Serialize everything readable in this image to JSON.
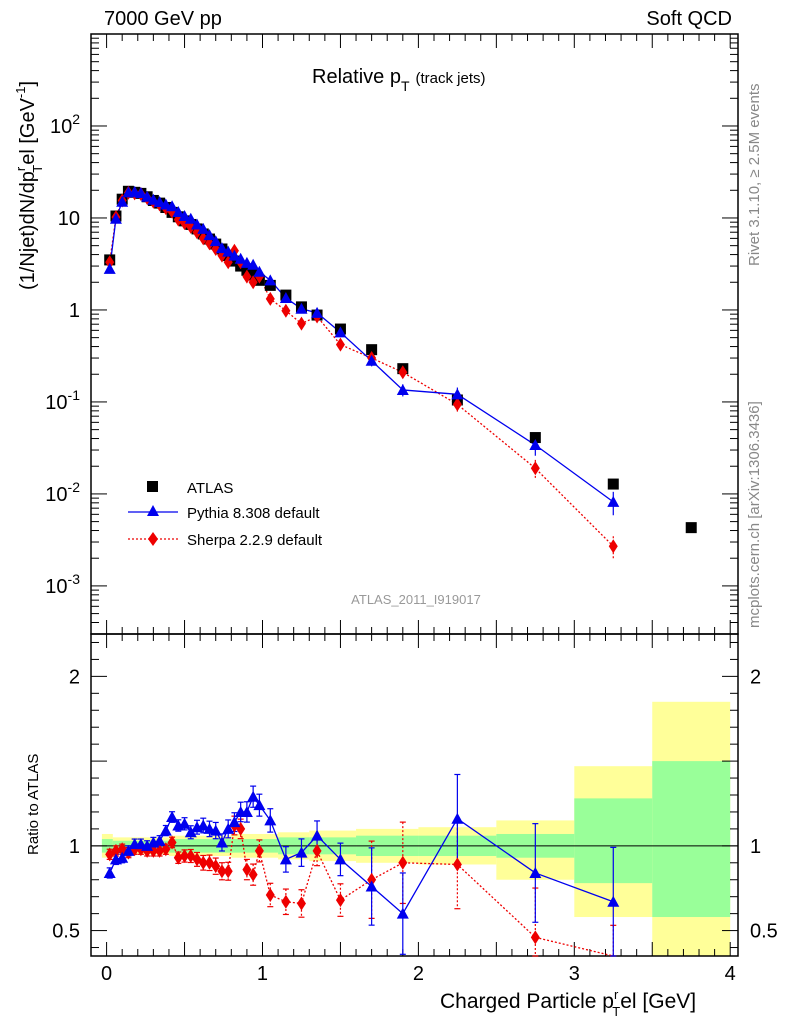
{
  "header": {
    "left": "7000 GeV pp",
    "right": "Soft QCD"
  },
  "side": {
    "rivet": "Rivet 3.1.10, ≥ 2.5M events",
    "mcplots": "mcplots.cern.ch [arXiv:1306.3436]"
  },
  "chart_data": {
    "type": "scatter",
    "title_main": "Relative p",
    "title_sub": "T",
    "title_note": "(track jets)",
    "watermark": "ATLAS_2011_I919017",
    "ylabel_main": {
      "pre": "(1/Njet)dN/dp",
      "r": "r",
      "T": "T",
      "mid": "el [GeV",
      "exp": "-1",
      "post": "]"
    },
    "ylabel_ratio": "Ratio to ATLAS",
    "xlabel": {
      "pre": "Charged Particle p",
      "r": "r",
      "T": "T",
      "post": "el [GeV]"
    },
    "xlim": [
      -0.1,
      4.05
    ],
    "main_ylim": [
      0.0003,
      1000
    ],
    "ratio_ylim": [
      0.35,
      2.25
    ],
    "main_yscale": "log",
    "main_yticks": [
      {
        "v": 0.001,
        "b": "10",
        "e": "-3"
      },
      {
        "v": 0.01,
        "b": "10",
        "e": "-2"
      },
      {
        "v": 0.1,
        "b": "10",
        "e": "-1"
      },
      {
        "v": 1,
        "b": "1",
        "e": ""
      },
      {
        "v": 10,
        "b": "10",
        "e": ""
      },
      {
        "v": 100,
        "b": "10",
        "e": "2"
      }
    ],
    "ratio_yticks": [
      {
        "v": 0.5,
        "label": "0.5"
      },
      {
        "v": 1,
        "label": "1"
      },
      {
        "v": 2,
        "label": "2"
      }
    ],
    "xticks": [
      {
        "v": 0,
        "label": "0"
      },
      {
        "v": 1,
        "label": "1"
      },
      {
        "v": 2,
        "label": "2"
      },
      {
        "v": 3,
        "label": "3"
      },
      {
        "v": 4,
        "label": "4"
      }
    ],
    "legend_position": "bottom-left",
    "colors": {
      "atlas": "#000000",
      "pythia": "#0000ee",
      "sherpa": "#ee0000",
      "band_inner": "#99ff99",
      "band_outer": "#ffff99"
    },
    "series": [
      {
        "name": "ATLAS",
        "style": "square",
        "points": [
          [
            0.02,
            3.5
          ],
          [
            0.06,
            10.5
          ],
          [
            0.1,
            16
          ],
          [
            0.14,
            19.5
          ],
          [
            0.18,
            19
          ],
          [
            0.22,
            18.5
          ],
          [
            0.26,
            17
          ],
          [
            0.3,
            15.5
          ],
          [
            0.34,
            14.5
          ],
          [
            0.38,
            13
          ],
          [
            0.42,
            11.5
          ],
          [
            0.46,
            10.3
          ],
          [
            0.5,
            9.3
          ],
          [
            0.54,
            8.5
          ],
          [
            0.58,
            7.6
          ],
          [
            0.62,
            6.7
          ],
          [
            0.66,
            5.9
          ],
          [
            0.7,
            5.2
          ],
          [
            0.74,
            4.6
          ],
          [
            0.78,
            3.9
          ],
          [
            0.82,
            3.4
          ],
          [
            0.86,
            3.0
          ],
          [
            0.9,
            2.7
          ],
          [
            0.94,
            2.4
          ],
          [
            0.98,
            2.1
          ],
          [
            1.05,
            1.85
          ],
          [
            1.15,
            1.45
          ],
          [
            1.25,
            1.08
          ],
          [
            1.35,
            0.88
          ],
          [
            1.5,
            0.62
          ],
          [
            1.7,
            0.37
          ],
          [
            1.9,
            0.23
          ],
          [
            2.25,
            0.105
          ],
          [
            2.75,
            0.041
          ],
          [
            3.25,
            0.0128
          ],
          [
            3.75,
            0.0043
          ]
        ]
      },
      {
        "name": "Pythia 8.308 default",
        "style": "triangle-line",
        "points": [
          [
            0.02,
            2.8
          ],
          [
            0.06,
            9.8
          ],
          [
            0.1,
            15
          ],
          [
            0.14,
            19
          ],
          [
            0.18,
            19.2
          ],
          [
            0.22,
            18.7
          ],
          [
            0.26,
            17
          ],
          [
            0.3,
            15.8
          ],
          [
            0.34,
            14.9
          ],
          [
            0.38,
            14
          ],
          [
            0.42,
            13.4
          ],
          [
            0.46,
            11.6
          ],
          [
            0.5,
            10.5
          ],
          [
            0.54,
            9.8
          ],
          [
            0.58,
            8.5
          ],
          [
            0.62,
            7.6
          ],
          [
            0.66,
            6.5
          ],
          [
            0.7,
            5.6
          ],
          [
            0.74,
            4.7
          ],
          [
            0.78,
            4.3
          ],
          [
            0.82,
            3.9
          ],
          [
            0.86,
            3.6
          ],
          [
            0.9,
            3.25
          ],
          [
            0.94,
            3.1
          ],
          [
            0.98,
            2.6
          ],
          [
            1.05,
            2.1
          ],
          [
            1.15,
            1.35
          ],
          [
            1.25,
            1.03
          ],
          [
            1.35,
            0.93
          ],
          [
            1.5,
            0.57
          ],
          [
            1.7,
            0.28
          ],
          [
            1.9,
            0.135
          ],
          [
            2.25,
            0.121
          ],
          [
            2.75,
            0.034
          ],
          [
            3.25,
            0.0082
          ]
        ],
        "ratio": [
          [
            0.02,
            0.84
          ],
          [
            0.06,
            0.92
          ],
          [
            0.1,
            0.93
          ],
          [
            0.14,
            0.97
          ],
          [
            0.18,
            1.01
          ],
          [
            0.22,
            1.01
          ],
          [
            0.26,
            1.0
          ],
          [
            0.3,
            1.02
          ],
          [
            0.34,
            1.03
          ],
          [
            0.38,
            1.09
          ],
          [
            0.42,
            1.17
          ],
          [
            0.46,
            1.12
          ],
          [
            0.5,
            1.13
          ],
          [
            0.54,
            1.08
          ],
          [
            0.58,
            1.11
          ],
          [
            0.62,
            1.12
          ],
          [
            0.66,
            1.1
          ],
          [
            0.7,
            1.09
          ],
          [
            0.74,
            1.02
          ],
          [
            0.78,
            1.1
          ],
          [
            0.82,
            1.14
          ],
          [
            0.86,
            1.2
          ],
          [
            0.9,
            1.2
          ],
          [
            0.94,
            1.29
          ],
          [
            0.98,
            1.24
          ],
          [
            1.05,
            1.15
          ],
          [
            1.15,
            0.92
          ],
          [
            1.25,
            0.96
          ],
          [
            1.35,
            1.06
          ],
          [
            1.5,
            0.92
          ],
          [
            1.7,
            0.76
          ],
          [
            1.9,
            0.6
          ],
          [
            2.25,
            1.16
          ],
          [
            2.75,
            0.84
          ],
          [
            3.25,
            0.67
          ]
        ]
      },
      {
        "name": "Sherpa 2.2.9 default",
        "style": "diamond-dotted",
        "points": [
          [
            0.02,
            3.3
          ],
          [
            0.06,
            10.2
          ],
          [
            0.1,
            15.5
          ],
          [
            0.14,
            18.8
          ],
          [
            0.18,
            18.5
          ],
          [
            0.22,
            18.2
          ],
          [
            0.26,
            16.5
          ],
          [
            0.3,
            15
          ],
          [
            0.34,
            14
          ],
          [
            0.38,
            12.8
          ],
          [
            0.42,
            11.7
          ],
          [
            0.46,
            9.6
          ],
          [
            0.5,
            8.8
          ],
          [
            0.54,
            8.0
          ],
          [
            0.58,
            7.0
          ],
          [
            0.62,
            6.0
          ],
          [
            0.66,
            5.3
          ],
          [
            0.7,
            4.6
          ],
          [
            0.74,
            3.9
          ],
          [
            0.78,
            3.3
          ],
          [
            0.82,
            4.4
          ],
          [
            0.86,
            3.3
          ],
          [
            0.9,
            2.3
          ],
          [
            0.94,
            2.0
          ],
          [
            0.98,
            2.3
          ],
          [
            1.05,
            1.32
          ],
          [
            1.15,
            0.98
          ],
          [
            1.25,
            0.71
          ],
          [
            1.35,
            0.85
          ],
          [
            1.5,
            0.42
          ],
          [
            1.7,
            0.3
          ],
          [
            1.9,
            0.21
          ],
          [
            2.25,
            0.094
          ],
          [
            2.75,
            0.019
          ],
          [
            3.25,
            0.0027
          ]
        ],
        "ratio": [
          [
            0.02,
            0.95
          ],
          [
            0.06,
            0.97
          ],
          [
            0.1,
            0.98
          ],
          [
            0.14,
            0.96
          ],
          [
            0.18,
            0.98
          ],
          [
            0.22,
            0.98
          ],
          [
            0.26,
            0.97
          ],
          [
            0.3,
            0.97
          ],
          [
            0.34,
            0.97
          ],
          [
            0.38,
            0.98
          ],
          [
            0.42,
            1.02
          ],
          [
            0.46,
            0.93
          ],
          [
            0.5,
            0.94
          ],
          [
            0.54,
            0.94
          ],
          [
            0.58,
            0.92
          ],
          [
            0.62,
            0.9
          ],
          [
            0.66,
            0.9
          ],
          [
            0.7,
            0.88
          ],
          [
            0.74,
            0.85
          ],
          [
            0.78,
            0.85
          ],
          [
            0.82,
            1.12
          ],
          [
            0.86,
            1.1
          ],
          [
            0.9,
            0.86
          ],
          [
            0.94,
            0.83
          ],
          [
            0.98,
            0.97
          ],
          [
            1.05,
            0.71
          ],
          [
            1.15,
            0.67
          ],
          [
            1.25,
            0.66
          ],
          [
            1.35,
            0.97
          ],
          [
            1.5,
            0.68
          ],
          [
            1.7,
            0.8
          ],
          [
            1.9,
            0.9
          ],
          [
            2.25,
            0.89
          ],
          [
            2.75,
            0.46
          ],
          [
            3.25,
            0.21
          ]
        ]
      }
    ],
    "ratio_bands": [
      [
        -0.03,
        0.04,
        0.96,
        1.04,
        0.93,
        1.07
      ],
      [
        0.04,
        0.4,
        0.97,
        1.03,
        0.95,
        1.05
      ],
      [
        0.4,
        0.8,
        0.96,
        1.04,
        0.94,
        1.06
      ],
      [
        0.8,
        1.1,
        0.96,
        1.04,
        0.93,
        1.07
      ],
      [
        1.1,
        1.3,
        0.95,
        1.05,
        0.92,
        1.08
      ],
      [
        1.3,
        1.6,
        0.95,
        1.05,
        0.91,
        1.09
      ],
      [
        1.6,
        2.0,
        0.94,
        1.06,
        0.9,
        1.1
      ],
      [
        2.0,
        2.5,
        0.94,
        1.06,
        0.89,
        1.11
      ],
      [
        2.5,
        3.0,
        0.93,
        1.07,
        0.8,
        1.15
      ],
      [
        3.0,
        3.5,
        0.78,
        1.28,
        0.58,
        1.47
      ],
      [
        3.5,
        4.0,
        0.58,
        1.5,
        0.3,
        1.85
      ]
    ]
  }
}
